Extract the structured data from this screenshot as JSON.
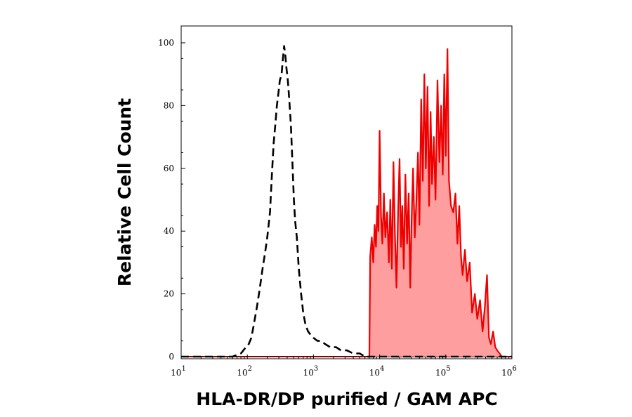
{
  "chart_data": {
    "type": "area",
    "xlabel": "HLA-DR/DP purified / GAM APC",
    "ylabel": "Relative Cell Count",
    "x_scale": "log",
    "xlim": [
      10,
      1000000
    ],
    "ylim": [
      0,
      100
    ],
    "y_ticks": [
      0,
      20,
      40,
      60,
      80,
      100
    ],
    "x_tick_labels": [
      {
        "base": "10",
        "exp": "1",
        "value": 10
      },
      {
        "base": "10",
        "exp": "2",
        "value": 100
      },
      {
        "base": "10",
        "exp": "3",
        "value": 1000
      },
      {
        "base": "10",
        "exp": "4",
        "value": 10000
      },
      {
        "base": "10",
        "exp": "5",
        "value": 100000
      },
      {
        "base": "10",
        "exp": "6",
        "value": 1000000
      }
    ],
    "grid": false,
    "series": [
      {
        "style": "dashed-line",
        "color": "#000000",
        "points": [
          [
            10,
            0
          ],
          [
            60,
            0
          ],
          [
            80,
            1
          ],
          [
            95,
            3
          ],
          [
            105,
            4
          ],
          [
            115,
            6
          ],
          [
            125,
            10
          ],
          [
            140,
            16
          ],
          [
            155,
            22
          ],
          [
            170,
            28
          ],
          [
            185,
            33
          ],
          [
            200,
            38
          ],
          [
            220,
            46
          ],
          [
            235,
            58
          ],
          [
            250,
            68
          ],
          [
            265,
            74
          ],
          [
            280,
            80
          ],
          [
            295,
            84
          ],
          [
            310,
            88
          ],
          [
            330,
            90
          ],
          [
            345,
            95
          ],
          [
            360,
            99
          ],
          [
            375,
            96
          ],
          [
            390,
            92
          ],
          [
            410,
            88
          ],
          [
            430,
            82
          ],
          [
            455,
            74
          ],
          [
            480,
            62
          ],
          [
            505,
            50
          ],
          [
            530,
            43
          ],
          [
            560,
            38
          ],
          [
            600,
            28
          ],
          [
            650,
            20
          ],
          [
            700,
            14
          ],
          [
            760,
            10
          ],
          [
            830,
            8
          ],
          [
            900,
            7
          ],
          [
            1000,
            6
          ],
          [
            1150,
            5
          ],
          [
            1300,
            5
          ],
          [
            1500,
            4
          ],
          [
            1800,
            3
          ],
          [
            2200,
            3
          ],
          [
            2600,
            2
          ],
          [
            3200,
            2
          ],
          [
            4000,
            1
          ],
          [
            5000,
            1
          ],
          [
            6000,
            0
          ],
          [
            1000000,
            0
          ]
        ]
      },
      {
        "style": "filled-area",
        "color": "#ee0000",
        "fill": "#ff9e9e",
        "points": [
          [
            7000,
            0
          ],
          [
            7200,
            32
          ],
          [
            7600,
            38
          ],
          [
            8000,
            30
          ],
          [
            8400,
            42
          ],
          [
            8800,
            35
          ],
          [
            9200,
            48
          ],
          [
            9600,
            40
          ],
          [
            10000,
            72
          ],
          [
            10500,
            45
          ],
          [
            11000,
            36
          ],
          [
            11600,
            52
          ],
          [
            12200,
            38
          ],
          [
            13000,
            46
          ],
          [
            13800,
            30
          ],
          [
            14500,
            50
          ],
          [
            15300,
            28
          ],
          [
            16200,
            62
          ],
          [
            17000,
            40
          ],
          [
            18000,
            22
          ],
          [
            19000,
            46
          ],
          [
            20000,
            63
          ],
          [
            21000,
            35
          ],
          [
            22000,
            48
          ],
          [
            23200,
            28
          ],
          [
            24500,
            58
          ],
          [
            26000,
            36
          ],
          [
            27500,
            52
          ],
          [
            29000,
            22
          ],
          [
            30500,
            44
          ],
          [
            32000,
            60
          ],
          [
            34000,
            38
          ],
          [
            36000,
            50
          ],
          [
            38000,
            65
          ],
          [
            40000,
            42
          ],
          [
            42500,
            82
          ],
          [
            45000,
            56
          ],
          [
            47500,
            90
          ],
          [
            50000,
            60
          ],
          [
            53000,
            86
          ],
          [
            56000,
            48
          ],
          [
            59000,
            78
          ],
          [
            62000,
            55
          ],
          [
            66000,
            70
          ],
          [
            70000,
            50
          ],
          [
            75000,
            88
          ],
          [
            80000,
            62
          ],
          [
            85000,
            80
          ],
          [
            90000,
            58
          ],
          [
            95000,
            90
          ],
          [
            100000,
            64
          ],
          [
            106000,
            98
          ],
          [
            112000,
            56
          ],
          [
            120000,
            48
          ],
          [
            130000,
            46
          ],
          [
            140000,
            52
          ],
          [
            150000,
            36
          ],
          [
            160000,
            48
          ],
          [
            170000,
            32
          ],
          [
            180000,
            26
          ],
          [
            195000,
            34
          ],
          [
            210000,
            24
          ],
          [
            230000,
            30
          ],
          [
            250000,
            14
          ],
          [
            275000,
            20
          ],
          [
            300000,
            12
          ],
          [
            330000,
            18
          ],
          [
            360000,
            8
          ],
          [
            390000,
            16
          ],
          [
            420000,
            26
          ],
          [
            450000,
            6
          ],
          [
            480000,
            4
          ],
          [
            520000,
            8
          ],
          [
            560000,
            3
          ],
          [
            600000,
            2
          ],
          [
            650000,
            1
          ],
          [
            700000,
            0
          ]
        ]
      }
    ]
  }
}
